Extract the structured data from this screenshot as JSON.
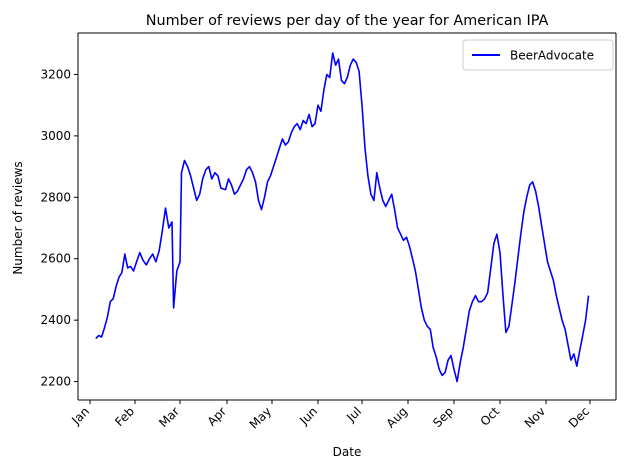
{
  "chart_data": {
    "type": "line",
    "title": "Number of reviews per day of the year for American IPA",
    "xlabel": "Date",
    "ylabel": "Number of reviews",
    "x_ticks": [
      "Jan",
      "Feb",
      "Mar",
      "Apr",
      "May",
      "Jun",
      "Jul",
      "Aug",
      "Sep",
      "Oct",
      "Nov",
      "Dec"
    ],
    "y_ticks": [
      2200,
      2400,
      2600,
      2800,
      3000,
      3200
    ],
    "ylim": [
      2140,
      3335
    ],
    "grid": false,
    "legend_position": "top-right",
    "series": [
      {
        "name": "BeerAdvocate",
        "color": "#0000ff",
        "points": [
          [
            "Jan 5",
            2340
          ],
          [
            "Jan 7",
            2350
          ],
          [
            "Jan 9",
            2345
          ],
          [
            "Jan 11",
            2375
          ],
          [
            "Jan 13",
            2410
          ],
          [
            "Jan 15",
            2460
          ],
          [
            "Jan 17",
            2470
          ],
          [
            "Jan 19",
            2510
          ],
          [
            "Jan 21",
            2540
          ],
          [
            "Jan 23",
            2555
          ],
          [
            "Jan 25",
            2615
          ],
          [
            "Jan 27",
            2570
          ],
          [
            "Jan 29",
            2575
          ],
          [
            "Jan 31",
            2560
          ],
          [
            "Feb 2",
            2590
          ],
          [
            "Feb 4",
            2620
          ],
          [
            "Feb 6",
            2595
          ],
          [
            "Feb 8",
            2580
          ],
          [
            "Feb 10",
            2600
          ],
          [
            "Feb 12",
            2615
          ],
          [
            "Feb 14",
            2590
          ],
          [
            "Feb 16",
            2625
          ],
          [
            "Feb 18",
            2690
          ],
          [
            "Feb 20",
            2765
          ],
          [
            "Feb 22",
            2700
          ],
          [
            "Feb 24",
            2720
          ],
          [
            "Feb 25",
            2440
          ],
          [
            "Feb 27",
            2560
          ],
          [
            "Mar 1",
            2590
          ],
          [
            "Mar 2",
            2880
          ],
          [
            "Mar 4",
            2920
          ],
          [
            "Mar 6",
            2900
          ],
          [
            "Mar 8",
            2870
          ],
          [
            "Mar 10",
            2830
          ],
          [
            "Mar 12",
            2790
          ],
          [
            "Mar 14",
            2810
          ],
          [
            "Mar 16",
            2860
          ],
          [
            "Mar 18",
            2890
          ],
          [
            "Mar 20",
            2900
          ],
          [
            "Mar 22",
            2860
          ],
          [
            "Mar 24",
            2880
          ],
          [
            "Mar 26",
            2870
          ],
          [
            "Mar 28",
            2830
          ],
          [
            "Mar 31",
            2825
          ],
          [
            "Apr 2",
            2860
          ],
          [
            "Apr 4",
            2840
          ],
          [
            "Apr 6",
            2810
          ],
          [
            "Apr 8",
            2820
          ],
          [
            "Apr 10",
            2840
          ],
          [
            "Apr 12",
            2860
          ],
          [
            "Apr 14",
            2890
          ],
          [
            "Apr 16",
            2900
          ],
          [
            "Apr 18",
            2880
          ],
          [
            "Apr 20",
            2850
          ],
          [
            "Apr 22",
            2790
          ],
          [
            "Apr 24",
            2760
          ],
          [
            "Apr 26",
            2800
          ],
          [
            "Apr 28",
            2850
          ],
          [
            "Apr 30",
            2870
          ],
          [
            "May 2",
            2900
          ],
          [
            "May 4",
            2930
          ],
          [
            "May 6",
            2960
          ],
          [
            "May 8",
            2990
          ],
          [
            "May 10",
            2970
          ],
          [
            "May 12",
            2980
          ],
          [
            "May 14",
            3010
          ],
          [
            "May 16",
            3030
          ],
          [
            "May 18",
            3040
          ],
          [
            "May 20",
            3020
          ],
          [
            "May 22",
            3050
          ],
          [
            "May 24",
            3040
          ],
          [
            "May 26",
            3070
          ],
          [
            "May 28",
            3030
          ],
          [
            "May 30",
            3040
          ],
          [
            "Jun 1",
            3100
          ],
          [
            "Jun 3",
            3080
          ],
          [
            "Jun 5",
            3150
          ],
          [
            "Jun 7",
            3200
          ],
          [
            "Jun 9",
            3190
          ],
          [
            "Jun 11",
            3270
          ],
          [
            "Jun 13",
            3230
          ],
          [
            "Jun 15",
            3250
          ],
          [
            "Jun 17",
            3180
          ],
          [
            "Jun 19",
            3170
          ],
          [
            "Jun 21",
            3190
          ],
          [
            "Jun 23",
            3230
          ],
          [
            "Jun 25",
            3250
          ],
          [
            "Jun 27",
            3240
          ],
          [
            "Jun 29",
            3210
          ],
          [
            "Jul 1",
            3100
          ],
          [
            "Jul 3",
            2960
          ],
          [
            "Jul 5",
            2870
          ],
          [
            "Jul 7",
            2810
          ],
          [
            "Jul 9",
            2790
          ],
          [
            "Jul 11",
            2880
          ],
          [
            "Jul 13",
            2830
          ],
          [
            "Jul 15",
            2790
          ],
          [
            "Jul 17",
            2770
          ],
          [
            "Jul 19",
            2790
          ],
          [
            "Jul 21",
            2810
          ],
          [
            "Jul 23",
            2760
          ],
          [
            "Jul 25",
            2700
          ],
          [
            "Jul 27",
            2680
          ],
          [
            "Jul 29",
            2660
          ],
          [
            "Jul 31",
            2670
          ],
          [
            "Aug 2",
            2640
          ],
          [
            "Aug 4",
            2600
          ],
          [
            "Aug 6",
            2560
          ],
          [
            "Aug 8",
            2500
          ],
          [
            "Aug 10",
            2440
          ],
          [
            "Aug 12",
            2400
          ],
          [
            "Aug 14",
            2380
          ],
          [
            "Aug 16",
            2370
          ],
          [
            "Aug 18",
            2310
          ],
          [
            "Aug 20",
            2280
          ],
          [
            "Aug 22",
            2240
          ],
          [
            "Aug 24",
            2220
          ],
          [
            "Aug 26",
            2230
          ],
          [
            "Aug 28",
            2270
          ],
          [
            "Aug 30",
            2285
          ],
          [
            "Sep 1",
            2240
          ],
          [
            "Sep 3",
            2200
          ],
          [
            "Sep 5",
            2260
          ],
          [
            "Sep 7",
            2310
          ],
          [
            "Sep 9",
            2370
          ],
          [
            "Sep 11",
            2430
          ],
          [
            "Sep 13",
            2460
          ],
          [
            "Sep 15",
            2480
          ],
          [
            "Sep 17",
            2460
          ],
          [
            "Sep 19",
            2460
          ],
          [
            "Sep 21",
            2470
          ],
          [
            "Sep 23",
            2490
          ],
          [
            "Sep 25",
            2570
          ],
          [
            "Sep 27",
            2650
          ],
          [
            "Sep 29",
            2680
          ],
          [
            "Oct 1",
            2620
          ],
          [
            "Oct 3",
            2480
          ],
          [
            "Oct 5",
            2360
          ],
          [
            "Oct 7",
            2380
          ],
          [
            "Oct 9",
            2450
          ],
          [
            "Oct 11",
            2520
          ],
          [
            "Oct 13",
            2600
          ],
          [
            "Oct 15",
            2680
          ],
          [
            "Oct 17",
            2750
          ],
          [
            "Oct 19",
            2800
          ],
          [
            "Oct 21",
            2840
          ],
          [
            "Oct 23",
            2850
          ],
          [
            "Oct 25",
            2820
          ],
          [
            "Oct 27",
            2770
          ],
          [
            "Oct 29",
            2710
          ],
          [
            "Oct 31",
            2650
          ],
          [
            "Nov 2",
            2590
          ],
          [
            "Nov 4",
            2560
          ],
          [
            "Nov 6",
            2530
          ],
          [
            "Nov 8",
            2480
          ],
          [
            "Nov 10",
            2440
          ],
          [
            "Nov 12",
            2400
          ],
          [
            "Nov 14",
            2370
          ],
          [
            "Nov 16",
            2320
          ],
          [
            "Nov 18",
            2270
          ],
          [
            "Nov 20",
            2290
          ],
          [
            "Nov 22",
            2250
          ],
          [
            "Nov 24",
            2300
          ],
          [
            "Nov 26",
            2350
          ],
          [
            "Nov 28",
            2400
          ],
          [
            "Nov 30",
            2480
          ]
        ]
      }
    ]
  }
}
